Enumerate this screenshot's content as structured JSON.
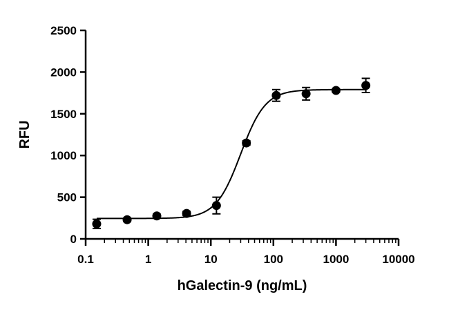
{
  "chart_data": {
    "type": "scatter",
    "title": "",
    "xlabel": "hGalectin-9 (ng/mL)",
    "ylabel": "RFU",
    "x_scale": "log",
    "xlim": [
      0.1,
      10000
    ],
    "ylim": [
      0,
      2500
    ],
    "x_ticks": [
      0.1,
      1,
      10,
      100,
      1000,
      10000
    ],
    "x_tick_labels": [
      "0.1",
      "1",
      "10",
      "100",
      "1000",
      "10000"
    ],
    "y_ticks": [
      0,
      500,
      1000,
      1500,
      2000,
      2500
    ],
    "y_tick_labels": [
      "0",
      "500",
      "1000",
      "1500",
      "2000",
      "2500"
    ],
    "grid": false,
    "series": [
      {
        "x": [
          0.15,
          0.46,
          1.37,
          4.1,
          12.3,
          37,
          111,
          333,
          1000,
          3000
        ],
        "y": [
          180,
          230,
          275,
          305,
          400,
          1150,
          1720,
          1740,
          1780,
          1840
        ],
        "error": [
          55,
          20,
          20,
          25,
          100,
          25,
          70,
          75,
          20,
          85
        ],
        "marker": "circle",
        "color": "#000000"
      }
    ],
    "fit_curve": {
      "type": "4PL",
      "bottom": 245,
      "top": 1790,
      "ec50": 30,
      "hill": 2.2,
      "color": "#000000"
    }
  }
}
